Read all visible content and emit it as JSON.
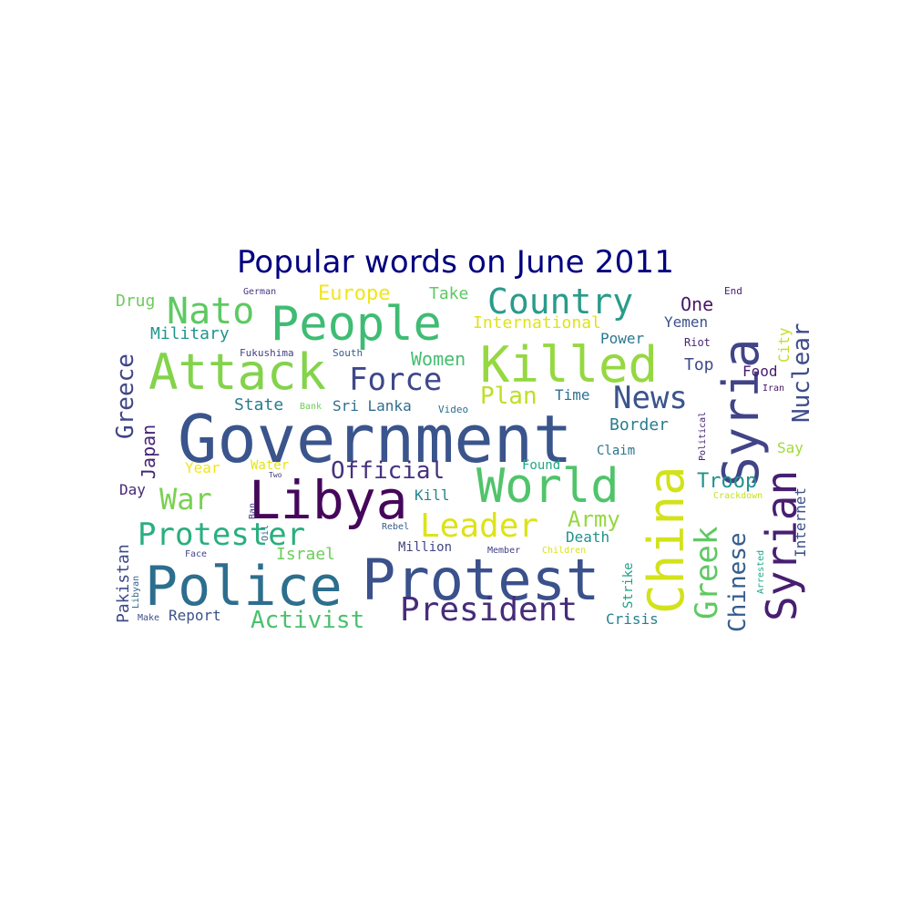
{
  "title": "Popular words on June 2011",
  "words": [
    {
      "text": "Government",
      "color": "#3a548c"
    },
    {
      "text": "Protest",
      "color": "#3b518b"
    },
    {
      "text": "Police",
      "color": "#2d6e8e"
    },
    {
      "text": "Libya",
      "color": "#45075a"
    },
    {
      "text": "Killed",
      "color": "#95d840"
    },
    {
      "text": "People",
      "color": "#3fbc73"
    },
    {
      "text": "Attack",
      "color": "#83d34b"
    },
    {
      "text": "World",
      "color": "#50c46a"
    },
    {
      "text": "China",
      "color": "#d2e21b"
    },
    {
      "text": "Syria",
      "color": "#414487"
    },
    {
      "text": "Syrian",
      "color": "#481f70"
    },
    {
      "text": "Country",
      "color": "#2a9b8a"
    },
    {
      "text": "President",
      "color": "#472c7a"
    },
    {
      "text": "Protester",
      "color": "#29af7f"
    },
    {
      "text": "Leader",
      "color": "#dde318"
    },
    {
      "text": "Force",
      "color": "#3f4889"
    },
    {
      "text": "Nato",
      "color": "#5ec962"
    },
    {
      "text": "War",
      "color": "#7ad151"
    },
    {
      "text": "News",
      "color": "#3a548c"
    },
    {
      "text": "Greek",
      "color": "#5ec962"
    },
    {
      "text": "Chinese",
      "color": "#365d8d"
    },
    {
      "text": "Official",
      "color": "#46327e"
    },
    {
      "text": "Activist",
      "color": "#4ac16d"
    },
    {
      "text": "Plan",
      "color": "#bddf26"
    },
    {
      "text": "Army",
      "color": "#95d840"
    },
    {
      "text": "Greece",
      "color": "#404688"
    },
    {
      "text": "Nuclear",
      "color": "#3e4c8a"
    },
    {
      "text": "Europe",
      "color": "#f1e51d"
    },
    {
      "text": "Women",
      "color": "#44bf70"
    },
    {
      "text": "Israel",
      "color": "#6ccd5a"
    },
    {
      "text": "Military",
      "color": "#1f958b"
    },
    {
      "text": "Border",
      "color": "#287d8e"
    },
    {
      "text": "Troop",
      "color": "#21918c"
    },
    {
      "text": "Pakistan",
      "color": "#3e4a89"
    },
    {
      "text": "Japan",
      "color": "#482677"
    },
    {
      "text": "Internet",
      "color": "#3b528b"
    },
    {
      "text": "Drug",
      "color": "#6ccd5a"
    },
    {
      "text": "Take",
      "color": "#5ec962"
    },
    {
      "text": "International",
      "color": "#dfe318"
    },
    {
      "text": "One",
      "color": "#481668"
    },
    {
      "text": "Yemen",
      "color": "#3b528b"
    },
    {
      "text": "Power",
      "color": "#2a788e"
    },
    {
      "text": "Top",
      "color": "#3e4989"
    },
    {
      "text": "Food",
      "color": "#481a6c"
    },
    {
      "text": "Time",
      "color": "#2c718e"
    },
    {
      "text": "State",
      "color": "#287c8e"
    },
    {
      "text": "Sri Lanka",
      "color": "#2f6c8e"
    },
    {
      "text": "Claim",
      "color": "#2b748e"
    },
    {
      "text": "Say",
      "color": "#a0da39"
    },
    {
      "text": "Year",
      "color": "#f1e51d"
    },
    {
      "text": "Water",
      "color": "#e5e419"
    },
    {
      "text": "Found",
      "color": "#22a884"
    },
    {
      "text": "Kill",
      "color": "#25848e"
    },
    {
      "text": "Death",
      "color": "#21918c"
    },
    {
      "text": "Million",
      "color": "#414487"
    },
    {
      "text": "Day",
      "color": "#482878"
    },
    {
      "text": "Report",
      "color": "#3b528b"
    },
    {
      "text": "Crisis",
      "color": "#26828e"
    },
    {
      "text": "City",
      "color": "#c2df23"
    },
    {
      "text": "Riot",
      "color": "#482475"
    },
    {
      "text": "Strike",
      "color": "#1fa187"
    },
    {
      "text": "Iran",
      "color": "#471365"
    },
    {
      "text": "Fukushima",
      "color": "#433e85"
    },
    {
      "text": "German",
      "color": "#443983"
    },
    {
      "text": "End",
      "color": "#481c6e"
    },
    {
      "text": "South",
      "color": "#38598c"
    },
    {
      "text": "Bank",
      "color": "#6ece58"
    },
    {
      "text": "Video",
      "color": "#2d708e"
    },
    {
      "text": "Face",
      "color": "#404588"
    },
    {
      "text": "Rebel",
      "color": "#365c8d"
    },
    {
      "text": "Member",
      "color": "#424186"
    },
    {
      "text": "Children",
      "color": "#d8e219"
    },
    {
      "text": "Crackdown",
      "color": "#c8e020"
    },
    {
      "text": "Arrested",
      "color": "#21a685"
    },
    {
      "text": "Political",
      "color": "#482173"
    },
    {
      "text": "Two",
      "color": "#443a83"
    },
    {
      "text": "Make",
      "color": "#3c4f8a"
    },
    {
      "text": "Libyan",
      "color": "#32658e"
    },
    {
      "text": "Oil",
      "color": "#31688e"
    },
    {
      "text": "Ban",
      "color": "#453581"
    }
  ]
}
